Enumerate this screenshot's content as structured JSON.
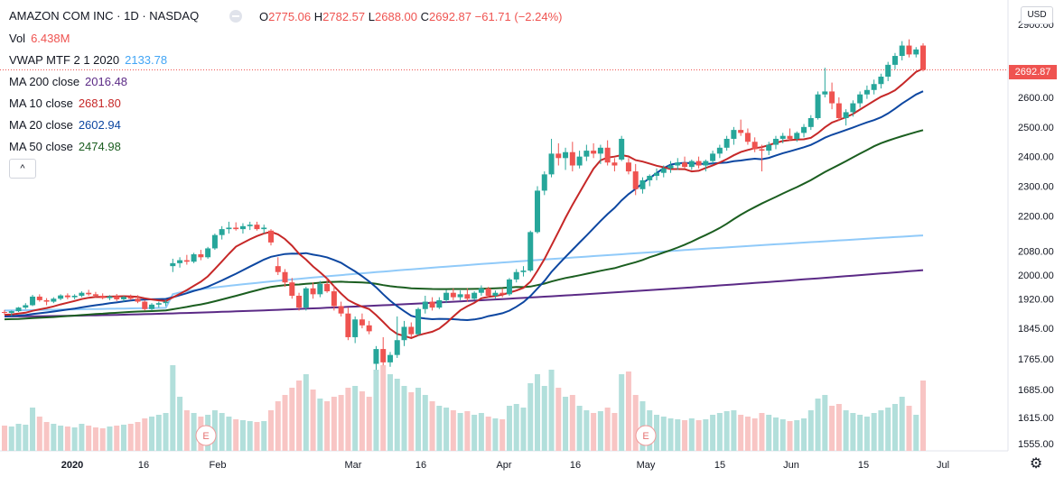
{
  "header": {
    "symbol": "AMAZON COM INC · 1D · NASDAQ",
    "ohlc": {
      "o_label": "O",
      "o": "2775.06",
      "h_label": "H",
      "h": "2782.57",
      "l_label": "L",
      "l": "2688.00",
      "c_label": "C",
      "c": "2692.87",
      "change": "−61.71 (−2.24%)"
    },
    "indicators": [
      {
        "label": "Vol",
        "value": "6.438M",
        "color": "#ef5350"
      },
      {
        "label": "VWAP MTF 2 1 2020",
        "value": "2133.78",
        "color": "#42a5f5"
      },
      {
        "label": "MA 200 close",
        "value": "2016.48",
        "color": "#5b2a86"
      },
      {
        "label": "MA 10 close",
        "value": "2681.80",
        "color": "#c62828"
      },
      {
        "label": "MA 20 close",
        "value": "2602.94",
        "color": "#0d47a1"
      },
      {
        "label": "MA 50 close",
        "value": "2474.98",
        "color": "#1b5e20"
      }
    ],
    "collapse_label": "^"
  },
  "currency_label": "USD",
  "last_price_label": "2692.87",
  "colors": {
    "up": "#26a69a",
    "down": "#ef5350",
    "up_vol": "#b2dfdb",
    "down_vol": "#f8c5c4",
    "ma200": "#5b2a86",
    "ma10": "#c62828",
    "ma20": "#0d47a1",
    "ma50": "#1b5e20",
    "vwap": "#90caf9",
    "grid": "#f0f3fa",
    "axis": "#131722"
  },
  "chart_data": {
    "type": "candlestick",
    "y_axis_ticks": [
      "2900.00",
      "2600.00",
      "2500.00",
      "2400.00",
      "2300.00",
      "2200.00",
      "2080.00",
      "2000.00",
      "1920.00",
      "1845.00",
      "1765.00",
      "1685.00",
      "1615.00",
      "1555.00"
    ],
    "x_axis_ticks": [
      "2020",
      "16",
      "Feb",
      "Mar",
      "16",
      "Apr",
      "16",
      "May",
      "15",
      "Jun",
      "15",
      "Jul"
    ],
    "earnings_markers": [
      "E",
      "E"
    ],
    "candles": [
      {
        "o": 1875,
        "h": 1882,
        "l": 1866,
        "c": 1872,
        "v": 0.28
      },
      {
        "o": 1872,
        "h": 1880,
        "l": 1862,
        "c": 1878,
        "v": 0.27
      },
      {
        "o": 1878,
        "h": 1892,
        "l": 1875,
        "c": 1890,
        "v": 0.3
      },
      {
        "o": 1890,
        "h": 1905,
        "l": 1885,
        "c": 1898,
        "v": 0.29
      },
      {
        "o": 1898,
        "h": 1933,
        "l": 1895,
        "c": 1927,
        "v": 0.48
      },
      {
        "o": 1927,
        "h": 1935,
        "l": 1910,
        "c": 1915,
        "v": 0.38
      },
      {
        "o": 1915,
        "h": 1922,
        "l": 1898,
        "c": 1910,
        "v": 0.32
      },
      {
        "o": 1910,
        "h": 1925,
        "l": 1905,
        "c": 1920,
        "v": 0.3
      },
      {
        "o": 1920,
        "h": 1935,
        "l": 1915,
        "c": 1931,
        "v": 0.28
      },
      {
        "o": 1931,
        "h": 1938,
        "l": 1918,
        "c": 1925,
        "v": 0.27
      },
      {
        "o": 1925,
        "h": 1935,
        "l": 1918,
        "c": 1930,
        "v": 0.26
      },
      {
        "o": 1930,
        "h": 1945,
        "l": 1925,
        "c": 1940,
        "v": 0.3
      },
      {
        "o": 1940,
        "h": 1950,
        "l": 1930,
        "c": 1935,
        "v": 0.28
      },
      {
        "o": 1935,
        "h": 1943,
        "l": 1925,
        "c": 1930,
        "v": 0.26
      },
      {
        "o": 1930,
        "h": 1938,
        "l": 1918,
        "c": 1922,
        "v": 0.25
      },
      {
        "o": 1922,
        "h": 1932,
        "l": 1915,
        "c": 1928,
        "v": 0.27
      },
      {
        "o": 1928,
        "h": 1936,
        "l": 1912,
        "c": 1918,
        "v": 0.28
      },
      {
        "o": 1918,
        "h": 1930,
        "l": 1910,
        "c": 1926,
        "v": 0.29
      },
      {
        "o": 1926,
        "h": 1934,
        "l": 1915,
        "c": 1920,
        "v": 0.3
      },
      {
        "o": 1920,
        "h": 1932,
        "l": 1905,
        "c": 1910,
        "v": 0.32
      },
      {
        "o": 1910,
        "h": 1915,
        "l": 1880,
        "c": 1885,
        "v": 0.36
      },
      {
        "o": 1885,
        "h": 1905,
        "l": 1880,
        "c": 1900,
        "v": 0.38
      },
      {
        "o": 1900,
        "h": 1910,
        "l": 1890,
        "c": 1905,
        "v": 0.4
      },
      {
        "o": 1905,
        "h": 1915,
        "l": 1895,
        "c": 1910,
        "v": 0.42
      },
      {
        "o": 2030,
        "h": 2055,
        "l": 2010,
        "c": 2040,
        "v": 0.95
      },
      {
        "o": 2040,
        "h": 2060,
        "l": 2025,
        "c": 2050,
        "v": 0.6
      },
      {
        "o": 2050,
        "h": 2068,
        "l": 2035,
        "c": 2045,
        "v": 0.45
      },
      {
        "o": 2045,
        "h": 2075,
        "l": 2040,
        "c": 2070,
        "v": 0.42
      },
      {
        "o": 2070,
        "h": 2085,
        "l": 2050,
        "c": 2060,
        "v": 0.38
      },
      {
        "o": 2060,
        "h": 2095,
        "l": 2055,
        "c": 2090,
        "v": 0.4
      },
      {
        "o": 2090,
        "h": 2140,
        "l": 2085,
        "c": 2135,
        "v": 0.45
      },
      {
        "o": 2135,
        "h": 2165,
        "l": 2120,
        "c": 2155,
        "v": 0.42
      },
      {
        "o": 2155,
        "h": 2180,
        "l": 2140,
        "c": 2160,
        "v": 0.38
      },
      {
        "o": 2160,
        "h": 2178,
        "l": 2150,
        "c": 2155,
        "v": 0.35
      },
      {
        "o": 2155,
        "h": 2175,
        "l": 2140,
        "c": 2165,
        "v": 0.34
      },
      {
        "o": 2165,
        "h": 2180,
        "l": 2152,
        "c": 2170,
        "v": 0.33
      },
      {
        "o": 2170,
        "h": 2180,
        "l": 2150,
        "c": 2155,
        "v": 0.32
      },
      {
        "o": 2155,
        "h": 2170,
        "l": 2140,
        "c": 2160,
        "v": 0.33
      },
      {
        "o": 2150,
        "h": 2155,
        "l": 2100,
        "c": 2110,
        "v": 0.45
      },
      {
        "o": 2030,
        "h": 2060,
        "l": 2000,
        "c": 2010,
        "v": 0.55
      },
      {
        "o": 2010,
        "h": 2020,
        "l": 1960,
        "c": 1975,
        "v": 0.62
      },
      {
        "o": 1975,
        "h": 1990,
        "l": 1920,
        "c": 1930,
        "v": 0.7
      },
      {
        "o": 1930,
        "h": 1940,
        "l": 1880,
        "c": 1890,
        "v": 0.78
      },
      {
        "o": 1890,
        "h": 1960,
        "l": 1880,
        "c": 1955,
        "v": 0.85
      },
      {
        "o": 1955,
        "h": 1975,
        "l": 1920,
        "c": 1935,
        "v": 0.68
      },
      {
        "o": 1935,
        "h": 1980,
        "l": 1925,
        "c": 1970,
        "v": 0.58
      },
      {
        "o": 1970,
        "h": 1990,
        "l": 1940,
        "c": 1945,
        "v": 0.55
      },
      {
        "o": 1945,
        "h": 1965,
        "l": 1880,
        "c": 1895,
        "v": 0.6
      },
      {
        "o": 1895,
        "h": 1910,
        "l": 1860,
        "c": 1870,
        "v": 0.62
      },
      {
        "o": 1870,
        "h": 1890,
        "l": 1780,
        "c": 1790,
        "v": 0.7
      },
      {
        "o": 1790,
        "h": 1860,
        "l": 1770,
        "c": 1850,
        "v": 0.72
      },
      {
        "o": 1850,
        "h": 1870,
        "l": 1820,
        "c": 1830,
        "v": 0.66
      },
      {
        "o": 1830,
        "h": 1845,
        "l": 1800,
        "c": 1810,
        "v": 0.6
      },
      {
        "o": 1700,
        "h": 1760,
        "l": 1680,
        "c": 1750,
        "v": 0.9
      },
      {
        "o": 1750,
        "h": 1790,
        "l": 1695,
        "c": 1705,
        "v": 0.95
      },
      {
        "o": 1705,
        "h": 1740,
        "l": 1690,
        "c": 1730,
        "v": 0.85
      },
      {
        "o": 1730,
        "h": 1860,
        "l": 1720,
        "c": 1780,
        "v": 0.8
      },
      {
        "o": 1780,
        "h": 1845,
        "l": 1760,
        "c": 1825,
        "v": 0.72
      },
      {
        "o": 1825,
        "h": 1840,
        "l": 1790,
        "c": 1800,
        "v": 0.65
      },
      {
        "o": 1800,
        "h": 1890,
        "l": 1795,
        "c": 1885,
        "v": 0.7
      },
      {
        "o": 1885,
        "h": 1930,
        "l": 1870,
        "c": 1910,
        "v": 0.62
      },
      {
        "o": 1910,
        "h": 1925,
        "l": 1880,
        "c": 1890,
        "v": 0.55
      },
      {
        "o": 1890,
        "h": 1925,
        "l": 1885,
        "c": 1915,
        "v": 0.5
      },
      {
        "o": 1915,
        "h": 1950,
        "l": 1905,
        "c": 1940,
        "v": 0.48
      },
      {
        "o": 1940,
        "h": 1955,
        "l": 1915,
        "c": 1925,
        "v": 0.45
      },
      {
        "o": 1925,
        "h": 1948,
        "l": 1915,
        "c": 1935,
        "v": 0.42
      },
      {
        "o": 1935,
        "h": 1955,
        "l": 1910,
        "c": 1920,
        "v": 0.44
      },
      {
        "o": 1920,
        "h": 1945,
        "l": 1915,
        "c": 1940,
        "v": 0.4
      },
      {
        "o": 1940,
        "h": 1965,
        "l": 1930,
        "c": 1955,
        "v": 0.42
      },
      {
        "o": 1955,
        "h": 1960,
        "l": 1925,
        "c": 1930,
        "v": 0.38
      },
      {
        "o": 1930,
        "h": 1948,
        "l": 1920,
        "c": 1940,
        "v": 0.36
      },
      {
        "o": 1940,
        "h": 1955,
        "l": 1925,
        "c": 1935,
        "v": 0.35
      },
      {
        "o": 1935,
        "h": 1990,
        "l": 1930,
        "c": 1985,
        "v": 0.5
      },
      {
        "o": 1985,
        "h": 2020,
        "l": 1975,
        "c": 2010,
        "v": 0.52
      },
      {
        "o": 2010,
        "h": 2030,
        "l": 1995,
        "c": 2015,
        "v": 0.48
      },
      {
        "o": 2015,
        "h": 2150,
        "l": 2010,
        "c": 2145,
        "v": 0.75
      },
      {
        "o": 2145,
        "h": 2300,
        "l": 2140,
        "c": 2285,
        "v": 0.85
      },
      {
        "o": 2285,
        "h": 2350,
        "l": 2270,
        "c": 2340,
        "v": 0.72
      },
      {
        "o": 2340,
        "h": 2460,
        "l": 2330,
        "c": 2410,
        "v": 0.9
      },
      {
        "o": 2410,
        "h": 2445,
        "l": 2370,
        "c": 2395,
        "v": 0.7
      },
      {
        "o": 2395,
        "h": 2430,
        "l": 2355,
        "c": 2415,
        "v": 0.6
      },
      {
        "o": 2415,
        "h": 2450,
        "l": 2350,
        "c": 2370,
        "v": 0.62
      },
      {
        "o": 2370,
        "h": 2420,
        "l": 2360,
        "c": 2400,
        "v": 0.5
      },
      {
        "o": 2400,
        "h": 2440,
        "l": 2385,
        "c": 2420,
        "v": 0.45
      },
      {
        "o": 2420,
        "h": 2445,
        "l": 2395,
        "c": 2410,
        "v": 0.42
      },
      {
        "o": 2410,
        "h": 2440,
        "l": 2375,
        "c": 2430,
        "v": 0.44
      },
      {
        "o": 2430,
        "h": 2455,
        "l": 2370,
        "c": 2380,
        "v": 0.48
      },
      {
        "o": 2380,
        "h": 2395,
        "l": 2350,
        "c": 2370,
        "v": 0.42
      },
      {
        "o": 2390,
        "h": 2470,
        "l": 2385,
        "c": 2460,
        "v": 0.85
      },
      {
        "o": 2380,
        "h": 2395,
        "l": 2340,
        "c": 2350,
        "v": 0.88
      },
      {
        "o": 2350,
        "h": 2375,
        "l": 2270,
        "c": 2290,
        "v": 0.62
      },
      {
        "o": 2290,
        "h": 2330,
        "l": 2275,
        "c": 2320,
        "v": 0.55
      },
      {
        "o": 2320,
        "h": 2340,
        "l": 2300,
        "c": 2335,
        "v": 0.45
      },
      {
        "o": 2335,
        "h": 2360,
        "l": 2320,
        "c": 2345,
        "v": 0.4
      },
      {
        "o": 2345,
        "h": 2370,
        "l": 2330,
        "c": 2360,
        "v": 0.38
      },
      {
        "o": 2360,
        "h": 2385,
        "l": 2345,
        "c": 2370,
        "v": 0.36
      },
      {
        "o": 2370,
        "h": 2395,
        "l": 2355,
        "c": 2380,
        "v": 0.35
      },
      {
        "o": 2380,
        "h": 2400,
        "l": 2360,
        "c": 2365,
        "v": 0.34
      },
      {
        "o": 2365,
        "h": 2390,
        "l": 2355,
        "c": 2385,
        "v": 0.36
      },
      {
        "o": 2385,
        "h": 2400,
        "l": 2360,
        "c": 2370,
        "v": 0.34
      },
      {
        "o": 2370,
        "h": 2390,
        "l": 2350,
        "c": 2385,
        "v": 0.35
      },
      {
        "o": 2385,
        "h": 2420,
        "l": 2375,
        "c": 2410,
        "v": 0.4
      },
      {
        "o": 2410,
        "h": 2440,
        "l": 2395,
        "c": 2430,
        "v": 0.42
      },
      {
        "o": 2430,
        "h": 2470,
        "l": 2420,
        "c": 2460,
        "v": 0.44
      },
      {
        "o": 2460,
        "h": 2500,
        "l": 2440,
        "c": 2490,
        "v": 0.45
      },
      {
        "o": 2490,
        "h": 2525,
        "l": 2470,
        "c": 2480,
        "v": 0.4
      },
      {
        "o": 2480,
        "h": 2495,
        "l": 2440,
        "c": 2450,
        "v": 0.38
      },
      {
        "o": 2450,
        "h": 2465,
        "l": 2415,
        "c": 2425,
        "v": 0.36
      },
      {
        "o": 2425,
        "h": 2440,
        "l": 2350,
        "c": 2420,
        "v": 0.42
      },
      {
        "o": 2420,
        "h": 2450,
        "l": 2405,
        "c": 2440,
        "v": 0.4
      },
      {
        "o": 2440,
        "h": 2470,
        "l": 2425,
        "c": 2460,
        "v": 0.37
      },
      {
        "o": 2460,
        "h": 2480,
        "l": 2445,
        "c": 2470,
        "v": 0.35
      },
      {
        "o": 2470,
        "h": 2495,
        "l": 2455,
        "c": 2460,
        "v": 0.33
      },
      {
        "o": 2460,
        "h": 2485,
        "l": 2450,
        "c": 2480,
        "v": 0.34
      },
      {
        "o": 2480,
        "h": 2510,
        "l": 2465,
        "c": 2500,
        "v": 0.36
      },
      {
        "o": 2500,
        "h": 2540,
        "l": 2490,
        "c": 2530,
        "v": 0.45
      },
      {
        "o": 2530,
        "h": 2620,
        "l": 2525,
        "c": 2610,
        "v": 0.58
      },
      {
        "o": 2610,
        "h": 2700,
        "l": 2600,
        "c": 2620,
        "v": 0.62
      },
      {
        "o": 2620,
        "h": 2650,
        "l": 2560,
        "c": 2580,
        "v": 0.5
      },
      {
        "o": 2580,
        "h": 2600,
        "l": 2520,
        "c": 2530,
        "v": 0.52
      },
      {
        "o": 2530,
        "h": 2560,
        "l": 2505,
        "c": 2550,
        "v": 0.45
      },
      {
        "o": 2550,
        "h": 2590,
        "l": 2535,
        "c": 2580,
        "v": 0.42
      },
      {
        "o": 2580,
        "h": 2620,
        "l": 2565,
        "c": 2610,
        "v": 0.4
      },
      {
        "o": 2610,
        "h": 2640,
        "l": 2595,
        "c": 2625,
        "v": 0.38
      },
      {
        "o": 2625,
        "h": 2660,
        "l": 2610,
        "c": 2645,
        "v": 0.42
      },
      {
        "o": 2645,
        "h": 2680,
        "l": 2630,
        "c": 2670,
        "v": 0.45
      },
      {
        "o": 2670,
        "h": 2720,
        "l": 2655,
        "c": 2710,
        "v": 0.48
      },
      {
        "o": 2710,
        "h": 2750,
        "l": 2695,
        "c": 2740,
        "v": 0.52
      },
      {
        "o": 2740,
        "h": 2790,
        "l": 2725,
        "c": 2775,
        "v": 0.6
      },
      {
        "o": 2775,
        "h": 2796,
        "l": 2735,
        "c": 2745,
        "v": 0.5
      },
      {
        "o": 2745,
        "h": 2770,
        "l": 2735,
        "c": 2762,
        "v": 0.4
      },
      {
        "o": 2775.06,
        "h": 2782.57,
        "l": 2688.0,
        "c": 2692.87,
        "v": 0.78
      }
    ]
  }
}
